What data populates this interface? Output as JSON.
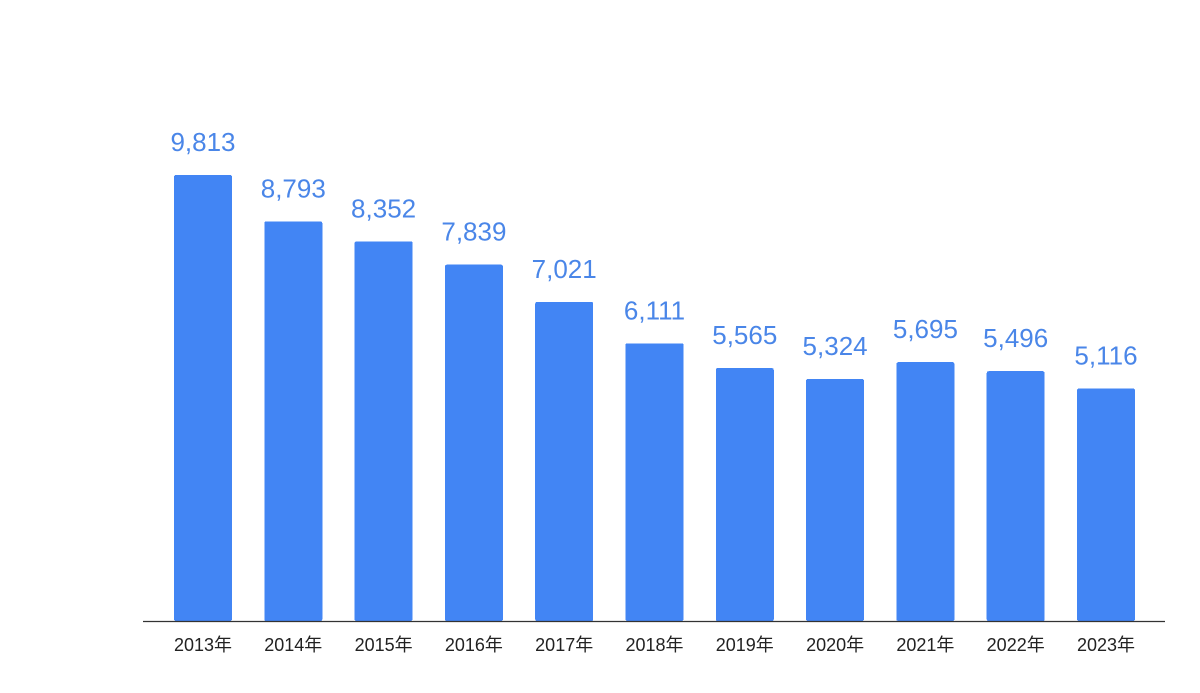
{
  "chart_data": {
    "type": "bar",
    "categories": [
      "2013年",
      "2014年",
      "2015年",
      "2016年",
      "2017年",
      "2018年",
      "2019年",
      "2020年",
      "2021年",
      "2022年",
      "2023年"
    ],
    "values": [
      9813,
      8793,
      8352,
      7839,
      7021,
      6111,
      5565,
      5324,
      5695,
      5496,
      5116
    ],
    "value_labels": [
      "9,813",
      "8,793",
      "8,352",
      "7,839",
      "7,021",
      "6,111",
      "5,565",
      "5,324",
      "5,695",
      "5,496",
      "5,116"
    ],
    "ylim": [
      0,
      12000
    ],
    "grid": false,
    "legend": "none",
    "colors": {
      "bar": "#4285f4",
      "label": "#4a86e8",
      "axis": "#333333"
    }
  }
}
